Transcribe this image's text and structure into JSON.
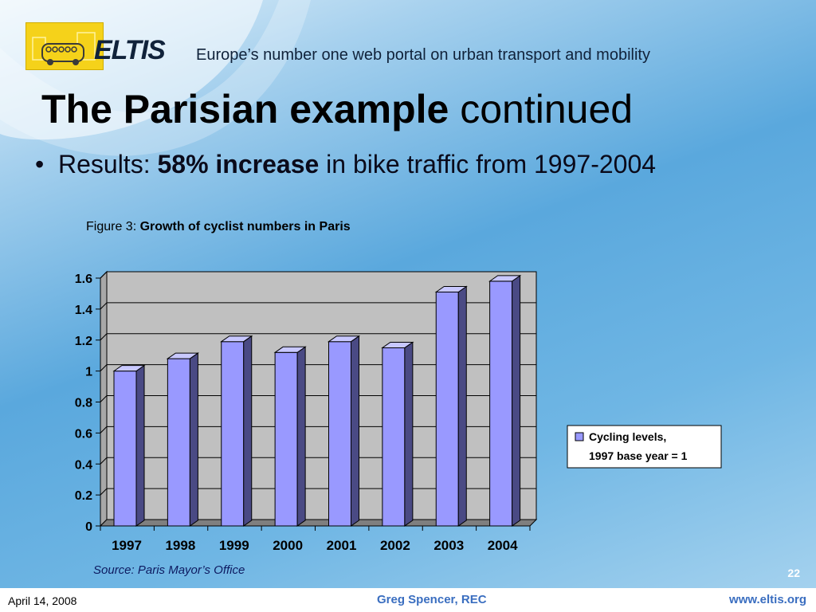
{
  "header": {
    "logo_text": "ELTIS",
    "tagline": "Europe’s number one web portal on urban transport and mobility"
  },
  "slide": {
    "title_bold": "The Parisian example",
    "title_rest": " continued",
    "bullet_prefix": "Results: ",
    "bullet_bold": "58% increase",
    "bullet_rest": " in bike traffic from 1997-2004",
    "figure_caption_prefix": "Figure 3: ",
    "figure_caption_bold": "Growth of cyclist numbers in Paris",
    "source": "Source: Paris Mayor’s Office",
    "page_number": "22"
  },
  "footer": {
    "date": "April 14, 2008",
    "author": "Greg Spencer, REC",
    "url": "www.eltis.org"
  },
  "colors": {
    "bar_front": "#9999ff",
    "bar_side": "#4a4a84",
    "bar_top": "#c8c8ff",
    "plot_bg": "#c0c0c0"
  },
  "chart_data": {
    "type": "bar",
    "categories": [
      "1997",
      "1998",
      "1999",
      "2000",
      "2001",
      "2002",
      "2003",
      "2004"
    ],
    "series": [
      {
        "name": "Cycling levels, 1997 base year = 1",
        "values": [
          1.0,
          1.08,
          1.19,
          1.12,
          1.19,
          1.15,
          1.51,
          1.58
        ]
      }
    ],
    "title": "Growth of cyclist numbers in Paris",
    "ylim": [
      0,
      1.6
    ],
    "yticks": [
      "0",
      "0.2",
      "0.4",
      "0.6",
      "0.8",
      "1",
      "1.2",
      "1.4",
      "1.6"
    ],
    "grid": true,
    "legend_position": "right",
    "legend_lines": [
      "Cycling levels,",
      "1997 base year = 1"
    ]
  }
}
